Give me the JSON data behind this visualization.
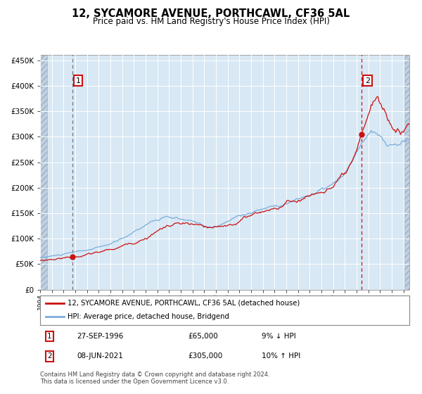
{
  "title": "12, SYCAMORE AVENUE, PORTHCAWL, CF36 5AL",
  "subtitle": "Price paid vs. HM Land Registry's House Price Index (HPI)",
  "legend_line1": "12, SYCAMORE AVENUE, PORTHCAWL, CF36 5AL (detached house)",
  "legend_line2": "HPI: Average price, detached house, Bridgend",
  "annotation1_date": "27-SEP-1996",
  "annotation1_price": "£65,000",
  "annotation1_hpi": "9% ↓ HPI",
  "annotation2_date": "08-JUN-2021",
  "annotation2_price": "£305,000",
  "annotation2_hpi": "10% ↑ HPI",
  "point1_x": 1996.74,
  "point1_y": 65000,
  "point2_x": 2021.44,
  "point2_y": 305000,
  "hpi_color": "#7aaddc",
  "price_color": "#cc1111",
  "grid_color": "#ffffff",
  "plot_bg": "#d8e8f4",
  "ylim": [
    0,
    460000
  ],
  "xlim_left": 1994.0,
  "xlim_right": 2025.5,
  "yticks": [
    0,
    50000,
    100000,
    150000,
    200000,
    250000,
    300000,
    350000,
    400000,
    450000
  ],
  "footer": "Contains HM Land Registry data © Crown copyright and database right 2024.\nThis data is licensed under the Open Government Licence v3.0."
}
